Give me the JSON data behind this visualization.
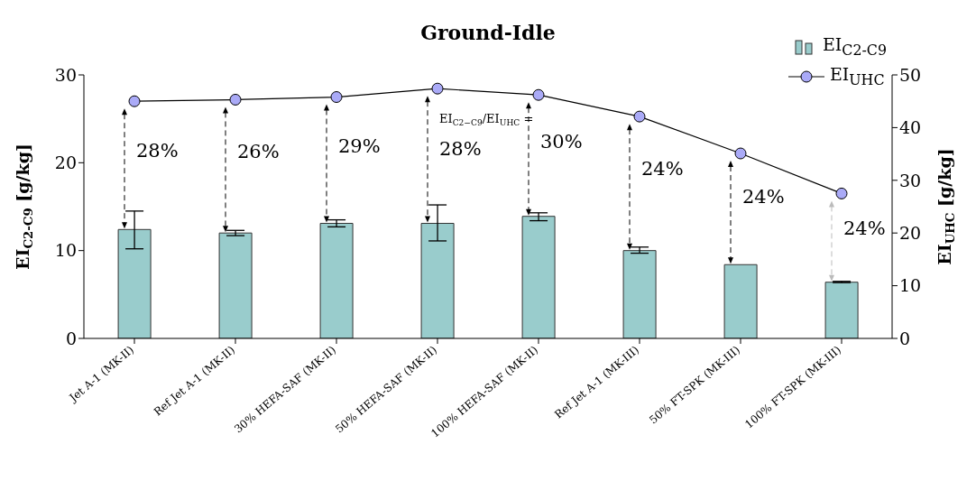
{
  "chart_data": {
    "type": "bar",
    "title": "Ground-Idle",
    "ylabel": "EI$_{C2-C9}$ [g/kg]",
    "y2label": "EI$_{UHC}$ [g/kg]",
    "categories": [
      "Jet A-1 (MK-II)",
      "Ref Jet A-1 (MK-II)",
      "30% HEFA-SAF (MK-II)",
      "50% HEFA-SAF (MK-II)",
      "100% HEFA-SAF (MK-II)",
      "Ref Jet A-1 (MK-III)",
      "50% FT-SPK (MK-III)",
      "100% FT-SPK (MK-III)"
    ],
    "series": [
      {
        "name": "EI$_{C2-C9}$",
        "color": "#99cccc",
        "values": [
          12.4,
          12.0,
          13.1,
          13.1,
          13.9,
          10.0,
          8.4,
          6.4
        ],
        "errors": [
          [
            10.2,
            14.5
          ],
          [
            11.7,
            12.3
          ],
          [
            12.7,
            13.5
          ],
          [
            11.1,
            15.2
          ],
          [
            13.4,
            14.3
          ],
          [
            9.7,
            10.4
          ],
          null,
          [
            6.35,
            6.5
          ]
        ]
      },
      {
        "name": "EI$_{UHC}$",
        "type": "line",
        "axis": "y2",
        "color": "#aaaaf7",
        "marker": "circle",
        "values": [
          45.0,
          45.3,
          45.8,
          47.4,
          46.2,
          42.1,
          35.1,
          27.5
        ]
      }
    ],
    "ylim": [
      0,
      30
    ],
    "yticks": [
      0,
      10,
      20,
      30
    ],
    "y2lim": [
      0,
      50
    ],
    "y2ticks": [
      0,
      10,
      20,
      30,
      40,
      50
    ],
    "grid": false,
    "legend": "top right",
    "annotations": [
      "28%",
      "26%",
      "29%",
      "EI$_{C2−C9}$/EI$_{UHC}$ = 28%",
      "30%",
      "24%",
      "24%",
      "24%"
    ]
  }
}
